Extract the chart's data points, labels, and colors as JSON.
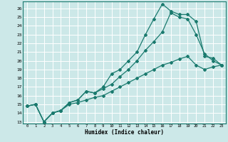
{
  "xlabel": "Humidex (Indice chaleur)",
  "bg_color": "#cce8e8",
  "line_color": "#1a7a6e",
  "grid_color": "#ffffff",
  "xlim": [
    -0.5,
    23.5
  ],
  "ylim": [
    12.8,
    26.8
  ],
  "xticks": [
    0,
    1,
    2,
    3,
    4,
    5,
    6,
    7,
    8,
    9,
    10,
    11,
    12,
    13,
    14,
    15,
    16,
    17,
    18,
    19,
    20,
    21,
    22,
    23
  ],
  "yticks": [
    13,
    14,
    15,
    16,
    17,
    18,
    19,
    20,
    21,
    22,
    23,
    24,
    25,
    26
  ],
  "line1_x": [
    0,
    1,
    2,
    3,
    4,
    5,
    6,
    7,
    8,
    9,
    10,
    11,
    12,
    13,
    14,
    15,
    16,
    17,
    18,
    19,
    20,
    21,
    22,
    23
  ],
  "line1_y": [
    14.8,
    15.0,
    13.0,
    14.0,
    14.3,
    15.2,
    15.5,
    16.5,
    16.3,
    17.0,
    18.5,
    19.0,
    20.0,
    21.0,
    23.0,
    24.8,
    26.5,
    25.7,
    25.3,
    25.3,
    24.5,
    20.5,
    20.3,
    19.5
  ],
  "line2_x": [
    0,
    1,
    2,
    3,
    4,
    5,
    6,
    7,
    8,
    9,
    10,
    11,
    12,
    13,
    14,
    15,
    16,
    17,
    18,
    19,
    20,
    21,
    22,
    23
  ],
  "line2_y": [
    14.8,
    15.0,
    13.0,
    14.0,
    14.3,
    15.2,
    15.5,
    16.5,
    16.3,
    16.8,
    17.3,
    18.2,
    19.0,
    20.0,
    21.2,
    22.2,
    23.3,
    25.5,
    25.0,
    24.8,
    23.0,
    20.8,
    20.0,
    19.5
  ],
  "line3_x": [
    0,
    1,
    2,
    3,
    4,
    5,
    6,
    7,
    8,
    9,
    10,
    11,
    12,
    13,
    14,
    15,
    16,
    17,
    18,
    19,
    20,
    21,
    22,
    23
  ],
  "line3_y": [
    14.8,
    15.0,
    13.0,
    14.0,
    14.3,
    15.0,
    15.2,
    15.5,
    15.8,
    16.0,
    16.5,
    17.0,
    17.5,
    18.0,
    18.5,
    19.0,
    19.5,
    19.8,
    20.2,
    20.5,
    19.5,
    19.0,
    19.3,
    19.5
  ]
}
